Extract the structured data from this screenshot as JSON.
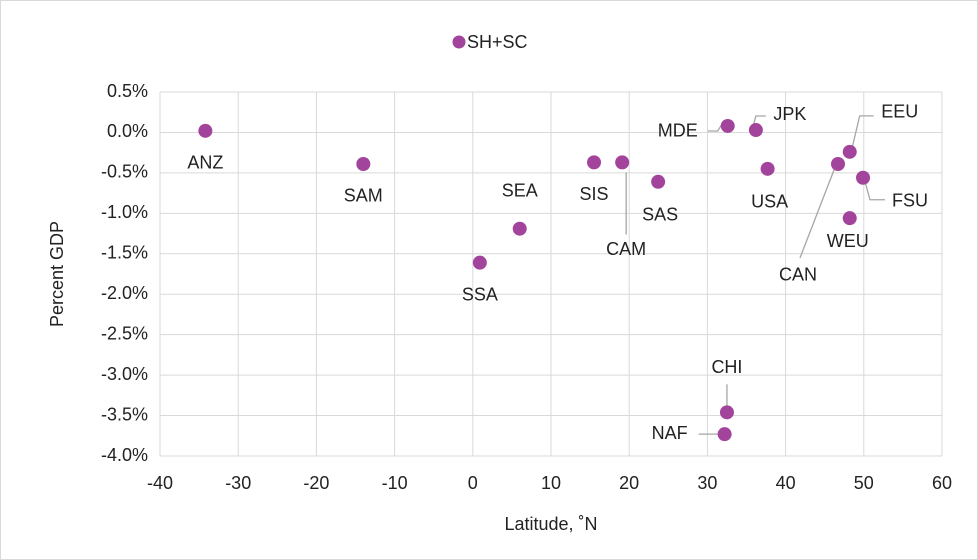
{
  "chart_data": {
    "type": "scatter",
    "xlabel": "Latitude, ˚N",
    "ylabel": "Percent GDP",
    "series": [
      {
        "name": "SH+SC",
        "color": "#a3449c",
        "x": [
          -34.2,
          -14.0,
          0.9,
          6.0,
          15.5,
          19.1,
          23.7,
          32.6,
          36.2,
          37.7,
          46.7,
          48.2,
          49.9,
          48.2,
          32.5,
          32.2
        ],
        "values": [
          0.02,
          -0.39,
          -1.61,
          -1.19,
          -0.37,
          -0.37,
          -0.61,
          0.08,
          0.03,
          -0.45,
          -0.39,
          -0.24,
          -0.56,
          -1.06,
          -3.46,
          -3.73
        ],
        "point_labels": [
          "ANZ",
          "SAM",
          "SSA",
          "SEA",
          "SIS",
          "CAM",
          "SAS",
          "MDE",
          "JPK",
          "USA",
          "CAN",
          "EEU",
          "FSU",
          "WEU",
          "CHI",
          "NAF"
        ]
      }
    ],
    "xlim": [
      -40,
      60
    ],
    "xticks": [
      -40,
      -30,
      -20,
      -10,
      0,
      10,
      20,
      30,
      40,
      50,
      60
    ],
    "ylim": [
      -4.0,
      0.5
    ],
    "yticks": [
      {
        "value": -4.0,
        "label": "-4.0%"
      },
      {
        "value": -3.5,
        "label": "-3.5%"
      },
      {
        "value": -3.0,
        "label": "-3.0%"
      },
      {
        "value": -2.5,
        "label": "-2.5%"
      },
      {
        "value": -2.0,
        "label": "-2.0%"
      },
      {
        "value": -1.5,
        "label": "-1.5%"
      },
      {
        "value": -1.0,
        "label": "-1.0%"
      },
      {
        "value": -0.5,
        "label": "-0.5%"
      },
      {
        "value": 0.0,
        "label": "0.0%"
      },
      {
        "value": 0.5,
        "label": "0.5%"
      }
    ],
    "grid": true,
    "legend": "top"
  }
}
